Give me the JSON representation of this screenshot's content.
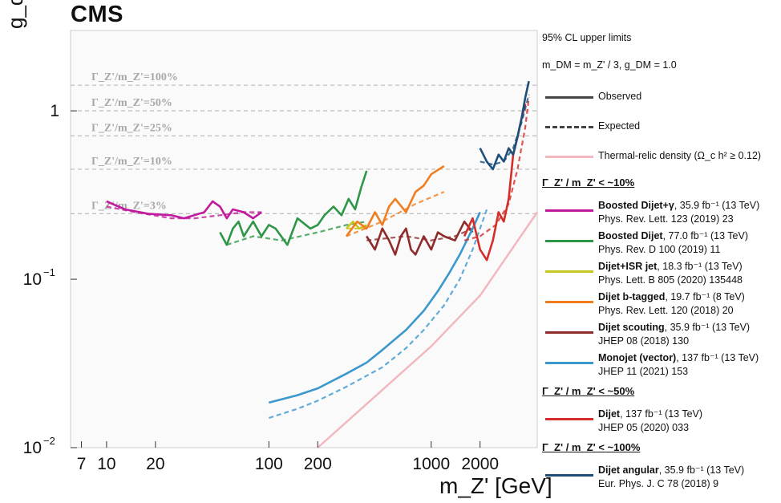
{
  "chart_data": {
    "type": "line",
    "experiment": "CMS",
    "xlabel": "m_Z' [GeV]",
    "ylabel": "g_q",
    "xscale": "log",
    "yscale": "log",
    "xlim": [
      6,
      4500
    ],
    "ylim": [
      0.01,
      3.0
    ],
    "x_ticks": [
      {
        "value": 7,
        "label": "7"
      },
      {
        "value": 10,
        "label": "10"
      },
      {
        "value": 20,
        "label": "20"
      },
      {
        "value": 100,
        "label": "100"
      },
      {
        "value": 200,
        "label": "200"
      },
      {
        "value": 1000,
        "label": "1000"
      },
      {
        "value": 2000,
        "label": "2000"
      }
    ],
    "y_ticks": [
      {
        "value": 0.01,
        "label": "10",
        "exp": "−2"
      },
      {
        "value": 0.1,
        "label": "10",
        "exp": "−1"
      },
      {
        "value": 1,
        "label": "1",
        "exp": ""
      }
    ],
    "width_lines": [
      {
        "label": "Γ_Z'/m_Z'=100%",
        "y": 1.42
      },
      {
        "label": "Γ_Z'/m_Z'=50%",
        "y": 1.0
      },
      {
        "label": "Γ_Z'/m_Z'=25%",
        "y": 0.71
      },
      {
        "label": "Γ_Z'/m_Z'=10%",
        "y": 0.45
      },
      {
        "label": "Γ_Z'/m_Z'=3%",
        "y": 0.245
      }
    ],
    "series": [
      {
        "name": "Boosted Dijet+γ",
        "color": "#c21a9d",
        "observed": [
          [
            10,
            0.29
          ],
          [
            13,
            0.26
          ],
          [
            18,
            0.245
          ],
          [
            25,
            0.24
          ],
          [
            30,
            0.23
          ],
          [
            40,
            0.25
          ],
          [
            45,
            0.29
          ],
          [
            50,
            0.27
          ],
          [
            55,
            0.23
          ],
          [
            60,
            0.26
          ],
          [
            70,
            0.25
          ],
          [
            80,
            0.23
          ],
          [
            90,
            0.25
          ]
        ],
        "expected": [
          [
            10,
            0.27
          ],
          [
            15,
            0.25
          ],
          [
            25,
            0.23
          ],
          [
            35,
            0.23
          ],
          [
            50,
            0.24
          ],
          [
            70,
            0.25
          ],
          [
            90,
            0.25
          ]
        ]
      },
      {
        "name": "Boosted Dijet",
        "color": "#2e9747",
        "observed": [
          [
            50,
            0.19
          ],
          [
            55,
            0.16
          ],
          [
            60,
            0.2
          ],
          [
            65,
            0.22
          ],
          [
            70,
            0.18
          ],
          [
            75,
            0.2
          ],
          [
            80,
            0.22
          ],
          [
            90,
            0.18
          ],
          [
            100,
            0.21
          ],
          [
            110,
            0.2
          ],
          [
            130,
            0.16
          ],
          [
            150,
            0.23
          ],
          [
            180,
            0.2
          ],
          [
            200,
            0.21
          ],
          [
            220,
            0.24
          ],
          [
            250,
            0.27
          ],
          [
            280,
            0.24
          ],
          [
            310,
            0.3
          ],
          [
            340,
            0.26
          ],
          [
            370,
            0.35
          ],
          [
            400,
            0.44
          ]
        ],
        "expected": [
          [
            55,
            0.16
          ],
          [
            80,
            0.18
          ],
          [
            120,
            0.17
          ],
          [
            200,
            0.19
          ],
          [
            300,
            0.21
          ],
          [
            400,
            0.22
          ]
        ]
      },
      {
        "name": "Dijet+ISR jet",
        "color": "#c7c724",
        "observed": [
          [
            300,
            0.2
          ],
          [
            330,
            0.22
          ],
          [
            360,
            0.2
          ],
          [
            400,
            0.21
          ]
        ],
        "expected": [
          [
            300,
            0.2
          ],
          [
            400,
            0.2
          ]
        ]
      },
      {
        "name": "Dijet b-tagged",
        "color": "#f07e20",
        "observed": [
          [
            300,
            0.18
          ],
          [
            350,
            0.22
          ],
          [
            400,
            0.2
          ],
          [
            450,
            0.25
          ],
          [
            500,
            0.21
          ],
          [
            550,
            0.27
          ],
          [
            600,
            0.3
          ],
          [
            700,
            0.25
          ],
          [
            800,
            0.33
          ],
          [
            900,
            0.36
          ],
          [
            1000,
            0.42
          ],
          [
            1200,
            0.47
          ]
        ],
        "expected": [
          [
            300,
            0.18
          ],
          [
            500,
            0.22
          ],
          [
            800,
            0.28
          ],
          [
            1200,
            0.33
          ]
        ]
      },
      {
        "name": "Dijet scouting",
        "color": "#8e2c2c",
        "observed": [
          [
            400,
            0.18
          ],
          [
            450,
            0.15
          ],
          [
            500,
            0.2
          ],
          [
            550,
            0.17
          ],
          [
            600,
            0.14
          ],
          [
            650,
            0.18
          ],
          [
            700,
            0.2
          ],
          [
            750,
            0.15
          ],
          [
            800,
            0.14
          ],
          [
            900,
            0.18
          ],
          [
            1000,
            0.15
          ],
          [
            1100,
            0.19
          ],
          [
            1200,
            0.18
          ],
          [
            1400,
            0.17
          ],
          [
            1600,
            0.22
          ],
          [
            1800,
            0.19
          ]
        ],
        "expected": [
          [
            400,
            0.17
          ],
          [
            700,
            0.18
          ],
          [
            1000,
            0.17
          ],
          [
            1400,
            0.18
          ],
          [
            1800,
            0.2
          ]
        ]
      },
      {
        "name": "Monojet (vector)",
        "color": "#3c97cc",
        "observed": [
          [
            100,
            0.0185
          ],
          [
            150,
            0.0205
          ],
          [
            200,
            0.0225
          ],
          [
            300,
            0.0275
          ],
          [
            400,
            0.032
          ],
          [
            500,
            0.038
          ],
          [
            700,
            0.05
          ],
          [
            900,
            0.065
          ],
          [
            1100,
            0.085
          ],
          [
            1300,
            0.11
          ],
          [
            1500,
            0.14
          ],
          [
            1800,
            0.2
          ],
          [
            2000,
            0.25
          ]
        ],
        "expected": [
          [
            100,
            0.015
          ],
          [
            150,
            0.017
          ],
          [
            200,
            0.019
          ],
          [
            300,
            0.023
          ],
          [
            500,
            0.03
          ],
          [
            700,
            0.039
          ],
          [
            900,
            0.05
          ],
          [
            1200,
            0.07
          ],
          [
            1500,
            0.1
          ],
          [
            1800,
            0.15
          ],
          [
            2000,
            0.2
          ],
          [
            2200,
            0.26
          ]
        ]
      },
      {
        "name": "Dijet",
        "color": "#d42d2a",
        "observed": [
          [
            1600,
            0.18
          ],
          [
            1800,
            0.23
          ],
          [
            2000,
            0.15
          ],
          [
            2200,
            0.13
          ],
          [
            2400,
            0.17
          ],
          [
            2600,
            0.25
          ],
          [
            2800,
            0.22
          ],
          [
            3000,
            0.3
          ],
          [
            3200,
            0.55
          ],
          [
            3400,
            0.7
          ],
          [
            3600,
            0.9
          ],
          [
            3800,
            1.1
          ]
        ],
        "expected": [
          [
            1600,
            0.17
          ],
          [
            2000,
            0.18
          ],
          [
            2500,
            0.21
          ],
          [
            3000,
            0.28
          ],
          [
            3400,
            0.45
          ],
          [
            3800,
            0.8
          ],
          [
            4000,
            1.2
          ]
        ]
      },
      {
        "name": "Dijet angular",
        "color": "#1d4f7a",
        "observed": [
          [
            2000,
            0.6
          ],
          [
            2200,
            0.5
          ],
          [
            2400,
            0.45
          ],
          [
            2600,
            0.55
          ],
          [
            2800,
            0.5
          ],
          [
            3000,
            0.6
          ],
          [
            3200,
            0.55
          ],
          [
            3400,
            0.7
          ],
          [
            3600,
            0.9
          ],
          [
            3800,
            1.2
          ],
          [
            4000,
            1.5
          ]
        ],
        "expected": [
          [
            2000,
            0.5
          ],
          [
            2400,
            0.48
          ],
          [
            2800,
            0.5
          ],
          [
            3200,
            0.6
          ],
          [
            3600,
            0.85
          ],
          [
            4000,
            1.25
          ]
        ]
      }
    ],
    "thermal_relic": [
      [
        200,
        0.01
      ],
      [
        1000,
        0.04
      ],
      [
        2000,
        0.08
      ],
      [
        4500,
        0.25
      ]
    ]
  },
  "legend": {
    "cl_text": "95% CL upper limits",
    "mdm_text": "m_DM = m_Z' / 3, g_DM = 1.0",
    "observed_label": "Observed",
    "expected_label": "Expected",
    "thermal_label": "Thermal-relic density (Ω_c h² ≥ 0.12)",
    "groups": [
      {
        "heading": "Γ_Z' / m_Z' < ~10%",
        "entries": [
          {
            "name": "Boosted Dijet+γ",
            "details": ", 35.9 fb⁻¹ (13 TeV)",
            "ref": "Phys. Rev. Lett. 123 (2019) 23",
            "color": "#c21a9d"
          },
          {
            "name": "Boosted Dijet",
            "details": ", 77.0 fb⁻¹ (13 TeV)",
            "ref": "Phys. Rev. D 100 (2019) 11",
            "color": "#2e9747"
          },
          {
            "name": "Dijet+ISR jet",
            "details": ", 18.3 fb⁻¹ (13 TeV)",
            "ref": "Phys. Lett. B 805 (2020) 135448",
            "color": "#c7c724"
          },
          {
            "name": "Dijet b-tagged",
            "details": ", 19.7 fb⁻¹ (8 TeV)",
            "ref": "Phys. Rev. Lett. 120 (2018) 20",
            "color": "#f07e20"
          },
          {
            "name": "Dijet scouting",
            "details": ", 35.9 fb⁻¹ (13 TeV)",
            "ref": "JHEP 08 (2018) 130",
            "color": "#8e2c2c"
          },
          {
            "name": "Monojet (vector)",
            "details": ", 137 fb⁻¹ (13 TeV)",
            "ref": "JHEP 11 (2021) 153",
            "color": "#3c97cc"
          }
        ]
      },
      {
        "heading": "Γ_Z' / m_Z' < ~50%",
        "entries": [
          {
            "name": "Dijet",
            "details": ", 137 fb⁻¹ (13 TeV)",
            "ref": "JHEP 05 (2020) 033",
            "color": "#d42d2a"
          }
        ]
      },
      {
        "heading": "Γ_Z' / m_Z' < ~100%",
        "entries": [
          {
            "name": "Dijet angular",
            "details": ", 35.9 fb⁻¹ (13 TeV)",
            "ref": "Eur. Phys. J. C 78 (2018) 9",
            "color": "#1d4f7a"
          }
        ]
      }
    ]
  }
}
